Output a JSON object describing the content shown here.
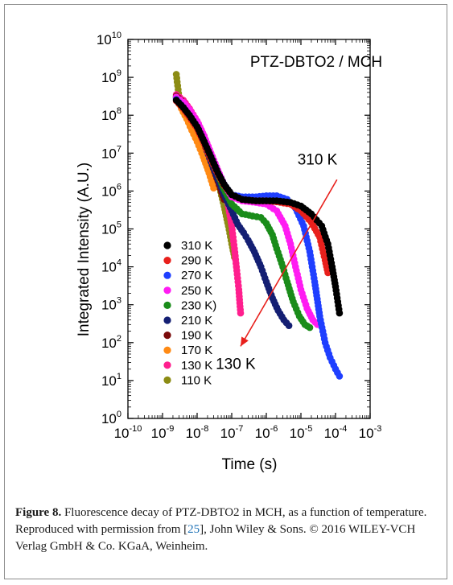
{
  "caption": {
    "label": "Figure 8.",
    "text_before_ref": " Fluorescence decay of PTZ-DBTO2 in MCH, as a function of temperature. Reproduced with permission from [",
    "ref": "25",
    "text_after_ref": "], John Wiley & Sons. © 2016 WILEY-VCH Verlag GmbH & Co. KGaA, Weinheim."
  },
  "chart_data": {
    "type": "scatter",
    "title": "PTZ-DBTO2 / MCH",
    "xlabel": "Time (s)",
    "ylabel": "Integrated Intensity (A.U.)",
    "xscale": "log",
    "yscale": "log",
    "xlim": [
      1e-10,
      0.001
    ],
    "ylim": [
      1,
      10000000000.0
    ],
    "x_tick_exponents": [
      -10,
      -9,
      -8,
      -7,
      -6,
      -5,
      -4,
      -3
    ],
    "y_tick_exponents": [
      0,
      1,
      2,
      3,
      4,
      5,
      6,
      7,
      8,
      9,
      10
    ],
    "legend_position": "lower-left",
    "annotations": [
      {
        "text": "310 K",
        "x": 3e-05,
        "y": 5000000.0
      },
      {
        "text": "130 K",
        "x": 1.3e-07,
        "y": 20
      }
    ],
    "arrow": {
      "from": [
        0.00011,
        2000000.0
      ],
      "to": [
        1.8e-07,
        80
      ],
      "color": "#e8201c"
    },
    "series": [
      {
        "name": "310 K",
        "color": "#000000",
        "points": [
          [
            2.5e-09,
            250000000.0
          ],
          [
            4e-09,
            160000000.0
          ],
          [
            6e-09,
            100000000.0
          ],
          [
            1e-08,
            50000000.0
          ],
          [
            1.6e-08,
            20000000.0
          ],
          [
            2.5e-08,
            8000000.0
          ],
          [
            4e-08,
            3000000.0
          ],
          [
            6e-08,
            1500000.0
          ],
          [
            1e-07,
            800000.0
          ],
          [
            2e-07,
            600000.0
          ],
          [
            5e-07,
            550000.0
          ],
          [
            1e-06,
            550000.0
          ],
          [
            2e-06,
            550000.0
          ],
          [
            5e-06,
            500000.0
          ],
          [
            1e-05,
            400000.0
          ],
          [
            2e-05,
            250000.0
          ],
          [
            4e-05,
            120000.0
          ],
          [
            6e-05,
            40000.0
          ],
          [
            8e-05,
            10000.0
          ],
          [
            0.0001,
            3000.0
          ],
          [
            0.00013,
            600.0
          ]
        ]
      },
      {
        "name": "290 K",
        "color": "#e8201c",
        "points": [
          [
            2.5e-09,
            240000000.0
          ],
          [
            4e-09,
            150000000.0
          ],
          [
            6e-09,
            90000000.0
          ],
          [
            1e-08,
            45000000.0
          ],
          [
            1.6e-08,
            18000000.0
          ],
          [
            2.5e-08,
            7000000.0
          ],
          [
            4e-08,
            2800000.0
          ],
          [
            6e-08,
            1400000.0
          ],
          [
            1e-07,
            800000.0
          ],
          [
            2e-07,
            600000.0
          ],
          [
            5e-07,
            550000.0
          ],
          [
            1e-06,
            550000.0
          ],
          [
            2e-06,
            520000.0
          ],
          [
            5e-06,
            450000.0
          ],
          [
            1e-05,
            300000.0
          ],
          [
            2e-05,
            150000.0
          ],
          [
            3.5e-05,
            60000.0
          ],
          [
            5e-05,
            15000.0
          ],
          [
            6e-05,
            7000.0
          ]
        ]
      },
      {
        "name": "270 K",
        "color": "#1f3fff",
        "points": [
          [
            2.5e-09,
            260000000.0
          ],
          [
            4e-09,
            160000000.0
          ],
          [
            6e-09,
            100000000.0
          ],
          [
            1e-08,
            50000000.0
          ],
          [
            1.6e-08,
            20000000.0
          ],
          [
            2.5e-08,
            8000000.0
          ],
          [
            4e-08,
            3000000.0
          ],
          [
            6e-08,
            1500000.0
          ],
          [
            1e-07,
            800000.0
          ],
          [
            2e-07,
            700000.0
          ],
          [
            5e-07,
            700000.0
          ],
          [
            1e-06,
            750000.0
          ],
          [
            2e-06,
            750000.0
          ],
          [
            4e-06,
            600000.0
          ],
          [
            7e-06,
            350000.0
          ],
          [
            1.2e-05,
            120000.0
          ],
          [
            1.8e-05,
            25000.0
          ],
          [
            2.5e-05,
            4000.0
          ],
          [
            3.5e-05,
            500.0
          ],
          [
            5e-05,
            100.0
          ],
          [
            7e-05,
            40.0
          ],
          [
            0.0001,
            20.0
          ],
          [
            0.00013,
            13.0
          ]
        ]
      },
      {
        "name": "250 K",
        "color": "#ff1cf2",
        "points": [
          [
            2.5e-09,
            300000000.0
          ],
          [
            4e-09,
            220000000.0
          ],
          [
            6e-09,
            140000000.0
          ],
          [
            1e-08,
            70000000.0
          ],
          [
            1.6e-08,
            28000000.0
          ],
          [
            2.5e-08,
            10000000.0
          ],
          [
            4e-08,
            3500000.0
          ],
          [
            6e-08,
            1500000.0
          ],
          [
            1e-07,
            700000.0
          ],
          [
            2e-07,
            550000.0
          ],
          [
            5e-07,
            500000.0
          ],
          [
            1e-06,
            450000.0
          ],
          [
            2e-06,
            300000.0
          ],
          [
            3.5e-06,
            120000.0
          ],
          [
            5e-06,
            40000.0
          ],
          [
            7e-06,
            10000.0
          ],
          [
            1e-05,
            2500.0
          ],
          [
            1.5e-05,
            800.0
          ],
          [
            2.2e-05,
            400.0
          ],
          [
            3e-05,
            300.0
          ]
        ]
      },
      {
        "name": "230 K)",
        "color": "#1a8c1a",
        "points": [
          [
            2.5e-09,
            300000000.0
          ],
          [
            4e-09,
            200000000.0
          ],
          [
            6e-09,
            120000000.0
          ],
          [
            1e-08,
            60000000.0
          ],
          [
            1.6e-08,
            23000000.0
          ],
          [
            2.5e-08,
            8000000.0
          ],
          [
            4e-08,
            2800000.0
          ],
          [
            6e-08,
            1100000.0
          ],
          [
            1e-07,
            450000.0
          ],
          [
            2e-07,
            250000.0
          ],
          [
            4e-07,
            220000.0
          ],
          [
            7e-07,
            200000.0
          ],
          [
            1e-06,
            140000.0
          ],
          [
            1.5e-06,
            70000.0
          ],
          [
            2e-06,
            30000.0
          ],
          [
            3e-06,
            10000.0
          ],
          [
            4e-06,
            4000.0
          ],
          [
            6e-06,
            1200.0
          ],
          [
            9e-06,
            500.0
          ],
          [
            1.3e-05,
            300.0
          ],
          [
            1.8e-05,
            250.0
          ]
        ]
      },
      {
        "name": "210 K",
        "color": "#141f73",
        "points": [
          [
            2.5e-09,
            280000000.0
          ],
          [
            4e-09,
            180000000.0
          ],
          [
            6e-09,
            100000000.0
          ],
          [
            1e-08,
            50000000.0
          ],
          [
            1.6e-08,
            18000000.0
          ],
          [
            2.5e-08,
            6000000.0
          ],
          [
            4e-08,
            2000000.0
          ],
          [
            6e-08,
            800000.0
          ],
          [
            1e-07,
            300000.0
          ],
          [
            1.5e-07,
            130000.0
          ],
          [
            2.2e-07,
            80000.0
          ],
          [
            3e-07,
            50000.0
          ],
          [
            4.5e-07,
            25000.0
          ],
          [
            7e-07,
            10000.0
          ],
          [
            1e-06,
            4000.0
          ],
          [
            1.5e-06,
            1500.0
          ],
          [
            2.2e-06,
            700.0
          ],
          [
            3.2e-06,
            400.0
          ],
          [
            4.5e-06,
            280.0
          ]
        ]
      },
      {
        "name": "190 K",
        "color": "#7a0a0a",
        "points": [
          [
            2.5e-09,
            320000000.0
          ],
          [
            4e-09,
            220000000.0
          ],
          [
            6e-09,
            130000000.0
          ],
          [
            1e-08,
            60000000.0
          ],
          [
            1.6e-08,
            20000000.0
          ],
          [
            2.5e-08,
            6000000.0
          ],
          [
            4e-08,
            1800000.0
          ],
          [
            6e-08,
            600000.0
          ]
        ]
      },
      {
        "name": "170 K",
        "color": "#ff8a14",
        "points": [
          [
            2.5e-09,
            300000000.0
          ],
          [
            3.5e-09,
            150000000.0
          ],
          [
            5e-09,
            80000000.0
          ],
          [
            7e-09,
            40000000.0
          ],
          [
            1e-08,
            20000000.0
          ],
          [
            1.5e-08,
            8000000.0
          ],
          [
            2.2e-08,
            3000000.0
          ],
          [
            3e-08,
            1200000.0
          ]
        ]
      },
      {
        "name": "130 K",
        "color": "#ff1f8e",
        "points": [
          [
            2.5e-09,
            350000000.0
          ],
          [
            4e-09,
            250000000.0
          ],
          [
            6e-09,
            150000000.0
          ],
          [
            1e-08,
            70000000.0
          ],
          [
            1.6e-08,
            28000000.0
          ],
          [
            2.5e-08,
            10000000.0
          ],
          [
            4e-08,
            3500000.0
          ],
          [
            6e-08,
            1200000.0
          ],
          [
            8e-08,
            400000.0
          ],
          [
            1e-07,
            120000.0
          ],
          [
            1.2e-07,
            30000.0
          ],
          [
            1.4e-07,
            8000.0
          ],
          [
            1.6e-07,
            2500.0
          ],
          [
            1.8e-07,
            600.0
          ]
        ]
      },
      {
        "name": "110 K",
        "color": "#8c8c14",
        "points": [
          [
            2.5e-09,
            1200000000.0
          ],
          [
            3e-09,
            300000000.0
          ],
          [
            4.5e-09,
            180000000.0
          ],
          [
            7e-09,
            100000000.0
          ],
          [
            1e-08,
            50000000.0
          ],
          [
            1.5e-08,
            20000000.0
          ],
          [
            2.2e-08,
            8000000.0
          ],
          [
            3.2e-08,
            3000000.0
          ],
          [
            4.5e-08,
            1200000.0
          ],
          [
            6e-08,
            400000.0
          ],
          [
            8e-08,
            120000.0
          ],
          [
            1e-07,
            40000.0
          ],
          [
            1.2e-07,
            18000.0
          ]
        ]
      }
    ]
  }
}
